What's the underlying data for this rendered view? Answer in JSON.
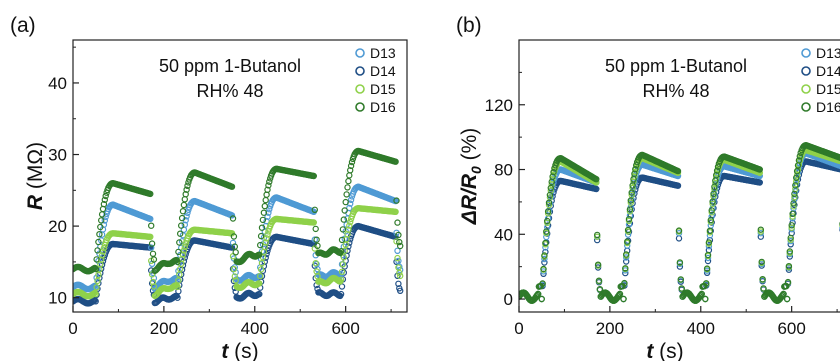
{
  "figure": {
    "panels": [
      {
        "label": "(a)",
        "condition_line1": "50 ppm 1-Butanol",
        "condition_line2": "RH% 48",
        "ylabel_sym": "R",
        "ylabel_unit": " (MΩ)",
        "xlabel_sym": "t",
        "xlabel_unit": " (s)"
      },
      {
        "label": "(b)",
        "condition_line1": "50 ppm 1-Butanol",
        "condition_line2": "RH% 48",
        "ylabel_sym": "ΔR/R",
        "ylabel_sub": "0",
        "ylabel_unit": " (%)",
        "xlabel_sym": "t",
        "xlabel_unit": " (s)"
      }
    ]
  },
  "colors": {
    "D13": "#4f9ad4",
    "D14": "#1f4e85",
    "D15": "#8fd14a",
    "D16": "#2f7a2a"
  },
  "chart_data": [
    {
      "type": "scatter",
      "marker": "open-circle",
      "title": "",
      "xlabel": "t (s)",
      "ylabel": "R (MΩ)",
      "xlim": [
        0,
        735
      ],
      "ylim": [
        8,
        46
      ],
      "xticks": [
        0,
        200,
        400,
        600
      ],
      "yticks": [
        10,
        20,
        30,
        40
      ],
      "grid": false,
      "legend": "top-right",
      "cycle_period_s": 180,
      "exposure_start_s": [
        50,
        230,
        410,
        590
      ],
      "exposure_end_s": [
        170,
        350,
        530,
        710
      ],
      "series": [
        {
          "name": "D13",
          "baseline_MOhm": [
            11.5,
            12.5,
            13.0,
            13.3
          ],
          "peak_MOhm": [
            23.0,
            23.5,
            24.0,
            25.5
          ],
          "end_of_exposure_MOhm": [
            21.0,
            21.5,
            22.0,
            23.5
          ]
        },
        {
          "name": "D14",
          "baseline_MOhm": [
            9.5,
            10.0,
            10.5,
            10.5
          ],
          "peak_MOhm": [
            17.5,
            18.0,
            18.5,
            20.0
          ],
          "end_of_exposure_MOhm": [
            17.0,
            17.0,
            17.5,
            18.5
          ]
        },
        {
          "name": "D15",
          "baseline_MOhm": [
            10.5,
            11.5,
            12.0,
            12.5
          ],
          "peak_MOhm": [
            19.0,
            19.5,
            21.0,
            22.5
          ],
          "end_of_exposure_MOhm": [
            18.5,
            19.0,
            20.5,
            22.0
          ]
        },
        {
          "name": "D16",
          "baseline_MOhm": [
            14.0,
            15.0,
            16.0,
            16.5
          ],
          "peak_MOhm": [
            26.0,
            27.5,
            28.0,
            30.5
          ],
          "end_of_exposure_MOhm": [
            24.5,
            25.5,
            27.0,
            29.0
          ]
        }
      ]
    },
    {
      "type": "scatter",
      "marker": "open-circle",
      "title": "",
      "xlabel": "t (s)",
      "ylabel": "ΔR/R0 (%)",
      "xlim": [
        0,
        735
      ],
      "ylim": [
        -8,
        160
      ],
      "xticks": [
        0,
        200,
        400,
        600
      ],
      "yticks": [
        0,
        40,
        80,
        120
      ],
      "grid": false,
      "legend": "top-right",
      "cycle_period_s": 180,
      "exposure_start_s": [
        50,
        230,
        410,
        590
      ],
      "exposure_end_s": [
        170,
        350,
        530,
        710
      ],
      "series": [
        {
          "name": "D13",
          "peak_pct": [
            80,
            83,
            82,
            90
          ],
          "end_of_exposure_pct": [
            72,
            76,
            76,
            82
          ]
        },
        {
          "name": "D14",
          "peak_pct": [
            73,
            75,
            76,
            85
          ],
          "end_of_exposure_pct": [
            68,
            70,
            72,
            80
          ]
        },
        {
          "name": "D15",
          "peak_pct": [
            85,
            87,
            86,
            92
          ],
          "end_of_exposure_pct": [
            72,
            78,
            78,
            85
          ]
        },
        {
          "name": "D16",
          "peak_pct": [
            87,
            89,
            88,
            95
          ],
          "end_of_exposure_pct": [
            74,
            79,
            80,
            87
          ]
        }
      ]
    }
  ]
}
